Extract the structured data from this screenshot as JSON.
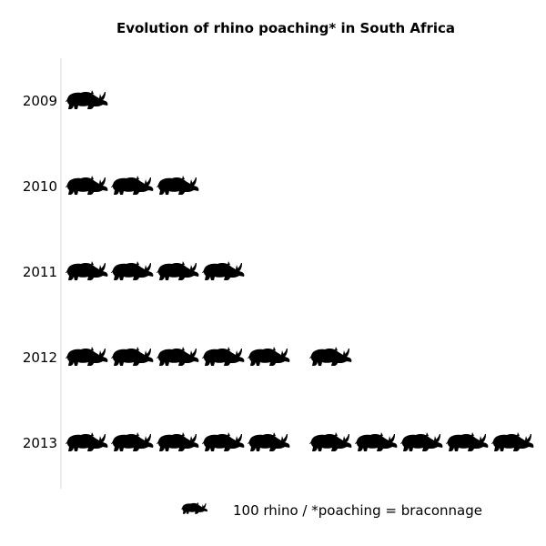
{
  "chart_data": {
    "type": "bar",
    "title": "Evolution of rhino poaching* in South Africa",
    "categories": [
      "2009",
      "2010",
      "2011",
      "2012",
      "2013"
    ],
    "values": [
      100,
      300,
      400,
      600,
      1000
    ],
    "unit_per_icon": 100,
    "legend": {
      "text": "100 rhino / *poaching = braconnage",
      "icon": "rhino-icon",
      "placement": "bottom"
    },
    "xlabel": "",
    "ylabel": "",
    "grid": false,
    "icon_color": "#000000",
    "axis_color": "#d9d9d9"
  }
}
